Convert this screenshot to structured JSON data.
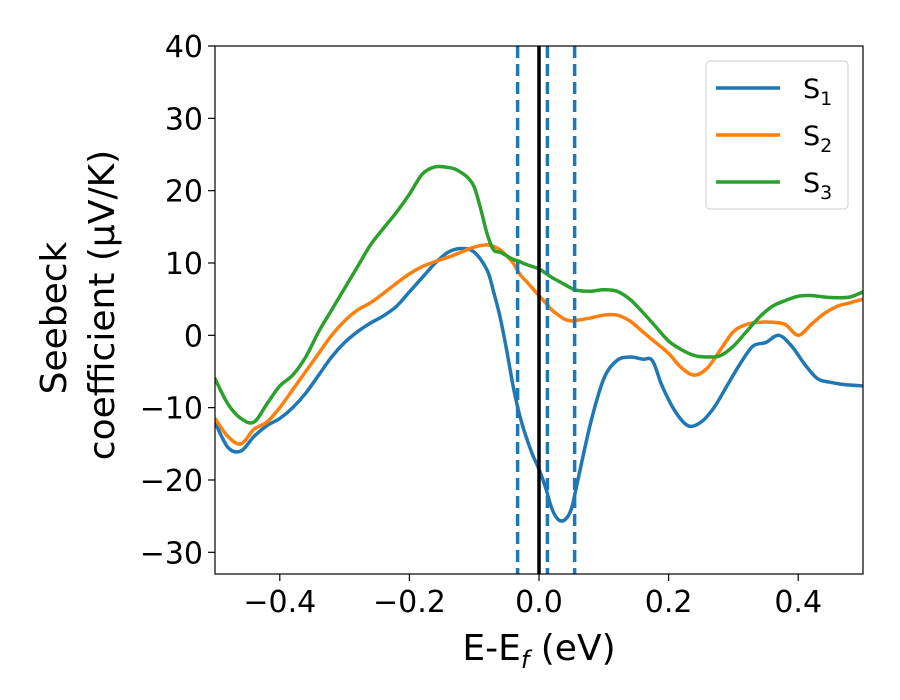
{
  "chart_data": {
    "type": "line",
    "xlabel": "E-E",
    "xlabel_sub": "f",
    "xlabel_unit": " (eV)",
    "ylabel_line1": "Seebeck",
    "ylabel_line2": "coefficient  (μV/K)",
    "xlim": [
      -0.5,
      0.5
    ],
    "ylim": [
      -33,
      40
    ],
    "x_ticks": [
      -0.4,
      -0.2,
      0.0,
      0.2,
      0.4
    ],
    "x_tick_labels": [
      "−0.4",
      "−0.2",
      "0.0",
      "0.2",
      "0.4"
    ],
    "y_ticks": [
      -30,
      -20,
      -10,
      0,
      10,
      20,
      30,
      40
    ],
    "y_tick_labels": [
      "−30",
      "−20",
      "−10",
      "0",
      "10",
      "20",
      "30",
      "40"
    ],
    "grid": false,
    "legend_position": "top-right",
    "vertical_lines": [
      {
        "x": 0.0,
        "style": "solid",
        "color": "#000000"
      },
      {
        "x": -0.033,
        "style": "dashed",
        "color": "#1f77b4"
      },
      {
        "x": 0.013,
        "style": "dashed",
        "color": "#1f77b4"
      },
      {
        "x": 0.055,
        "style": "dashed",
        "color": "#1f77b4"
      }
    ],
    "series": [
      {
        "name": "S",
        "sub": "1",
        "color": "#1f77b4",
        "x": [
          -0.5,
          -0.48,
          -0.46,
          -0.44,
          -0.42,
          -0.4,
          -0.38,
          -0.36,
          -0.34,
          -0.32,
          -0.3,
          -0.28,
          -0.26,
          -0.24,
          -0.22,
          -0.2,
          -0.18,
          -0.16,
          -0.14,
          -0.12,
          -0.1,
          -0.08,
          -0.07,
          -0.06,
          -0.05,
          -0.04,
          -0.03,
          -0.02,
          -0.01,
          0.0,
          0.01,
          0.02,
          0.03,
          0.04,
          0.05,
          0.06,
          0.08,
          0.1,
          0.12,
          0.14,
          0.16,
          0.175,
          0.19,
          0.21,
          0.23,
          0.25,
          0.27,
          0.29,
          0.31,
          0.33,
          0.35,
          0.37,
          0.39,
          0.41,
          0.43,
          0.45,
          0.47,
          0.5
        ],
        "y": [
          -12,
          -15.5,
          -16,
          -14,
          -12.5,
          -11.5,
          -10,
          -8,
          -5.5,
          -3,
          -1,
          0.5,
          1.7,
          2.7,
          4,
          6,
          8,
          10,
          11.5,
          12,
          11.5,
          9,
          6,
          2.5,
          -2,
          -7,
          -11,
          -14,
          -16.5,
          -18.5,
          -21,
          -24,
          -25.5,
          -25.5,
          -24,
          -20,
          -12,
          -6,
          -3.5,
          -3,
          -3.3,
          -3.5,
          -7,
          -10.5,
          -12.5,
          -12,
          -10,
          -7,
          -4,
          -1.5,
          -1,
          0,
          -1.5,
          -4,
          -6,
          -6.5,
          -6.8,
          -7
        ]
      },
      {
        "name": "S",
        "sub": "2",
        "color": "#ff7f0e",
        "x": [
          -0.5,
          -0.48,
          -0.46,
          -0.44,
          -0.42,
          -0.4,
          -0.38,
          -0.36,
          -0.34,
          -0.32,
          -0.3,
          -0.28,
          -0.26,
          -0.24,
          -0.22,
          -0.2,
          -0.18,
          -0.16,
          -0.14,
          -0.12,
          -0.1,
          -0.08,
          -0.07,
          -0.06,
          -0.05,
          -0.04,
          -0.03,
          -0.02,
          -0.01,
          0.0,
          0.01,
          0.02,
          0.03,
          0.04,
          0.05,
          0.06,
          0.08,
          0.1,
          0.12,
          0.14,
          0.16,
          0.18,
          0.2,
          0.22,
          0.24,
          0.26,
          0.28,
          0.3,
          0.32,
          0.34,
          0.36,
          0.38,
          0.4,
          0.42,
          0.44,
          0.46,
          0.48,
          0.5
        ],
        "y": [
          -11.5,
          -14,
          -15,
          -13,
          -12,
          -10,
          -7.5,
          -5,
          -2.5,
          0,
          2,
          3.5,
          4.5,
          5.8,
          7.2,
          8.5,
          9.5,
          10.2,
          10.8,
          11.5,
          12.2,
          12.5,
          12.3,
          11.8,
          11,
          10,
          8.5,
          7.5,
          6.5,
          5.5,
          4.5,
          3.5,
          2.8,
          2.2,
          2,
          2.1,
          2.4,
          2.8,
          2.8,
          2,
          0.5,
          -1,
          -2.5,
          -4.5,
          -5.5,
          -4.5,
          -2,
          0.5,
          1.5,
          1.8,
          1.8,
          1.5,
          0,
          1.5,
          3,
          4,
          4.5,
          5
        ]
      },
      {
        "name": "S",
        "sub": "3",
        "color": "#2ca02c",
        "x": [
          -0.5,
          -0.48,
          -0.46,
          -0.44,
          -0.42,
          -0.4,
          -0.38,
          -0.36,
          -0.34,
          -0.32,
          -0.3,
          -0.28,
          -0.26,
          -0.24,
          -0.22,
          -0.2,
          -0.18,
          -0.16,
          -0.14,
          -0.13,
          -0.12,
          -0.11,
          -0.1,
          -0.09,
          -0.08,
          -0.07,
          -0.06,
          -0.05,
          -0.04,
          -0.03,
          -0.02,
          -0.01,
          0.0,
          0.01,
          0.02,
          0.03,
          0.04,
          0.05,
          0.06,
          0.08,
          0.1,
          0.12,
          0.14,
          0.16,
          0.18,
          0.2,
          0.22,
          0.24,
          0.26,
          0.28,
          0.3,
          0.32,
          0.34,
          0.36,
          0.38,
          0.4,
          0.42,
          0.44,
          0.46,
          0.48,
          0.5
        ],
        "y": [
          -6,
          -9.5,
          -11.5,
          -12,
          -9.5,
          -7,
          -5.5,
          -3,
          0.5,
          3.5,
          6.5,
          9.5,
          12.5,
          14.8,
          17,
          19.5,
          22.3,
          23.3,
          23.2,
          23,
          22.5,
          21.8,
          20.5,
          17.5,
          14,
          11.8,
          11.5,
          11,
          10.5,
          10.2,
          9.8,
          9.5,
          9.2,
          8.6,
          8,
          7.5,
          7,
          6.5,
          6.2,
          6.1,
          6.3,
          6.1,
          5,
          3.2,
          1.2,
          -0.8,
          -2,
          -2.8,
          -3,
          -2.8,
          -1.5,
          0.5,
          2.5,
          4,
          4.8,
          5.4,
          5.5,
          5.3,
          5.2,
          5.3,
          6
        ]
      }
    ]
  }
}
